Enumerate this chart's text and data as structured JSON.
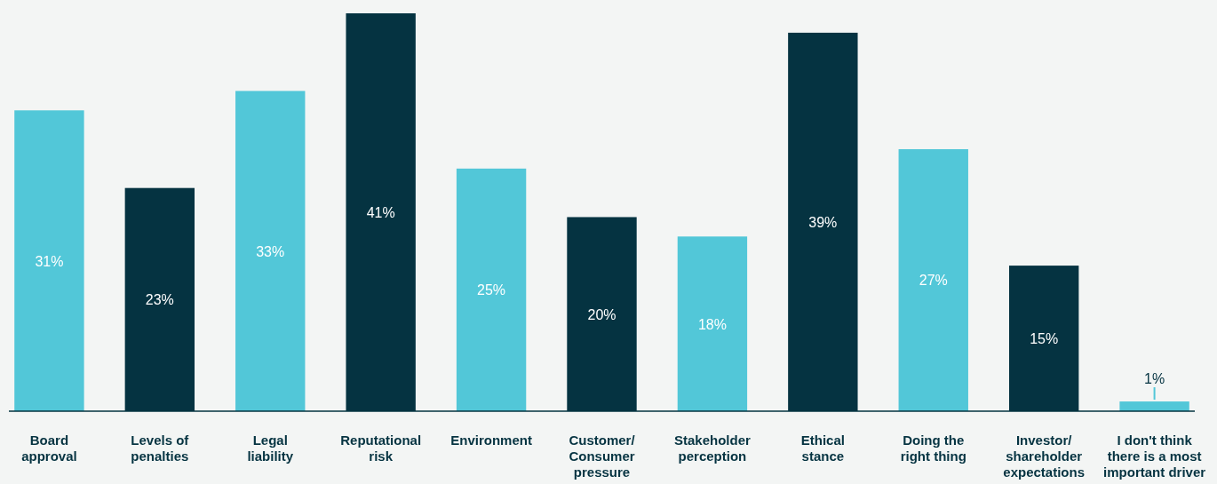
{
  "chart_data": {
    "type": "bar",
    "categories": [
      "Board\napproval",
      "Levels of\npenalties",
      "Legal\nliability",
      "Reputational\nrisk",
      "Environment",
      "Customer/\nConsumer\npressure",
      "Stakeholder\nperception",
      "Ethical\nstance",
      "Doing the\nright thing",
      "Investor/\nshareholder\nexpectations",
      "I don't think\nthere is a most\nimportant driver"
    ],
    "values": [
      31,
      23,
      33,
      41,
      25,
      20,
      18,
      39,
      27,
      15,
      1
    ],
    "colors": [
      "#52c7d8",
      "#053341",
      "#52c7d8",
      "#053341",
      "#52c7d8",
      "#053341",
      "#52c7d8",
      "#053341",
      "#52c7d8",
      "#053341",
      "#52c7d8"
    ],
    "value_labels": [
      "31%",
      "23%",
      "33%",
      "41%",
      "25%",
      "20%",
      "18%",
      "39%",
      "27%",
      "15%",
      "1%"
    ]
  }
}
